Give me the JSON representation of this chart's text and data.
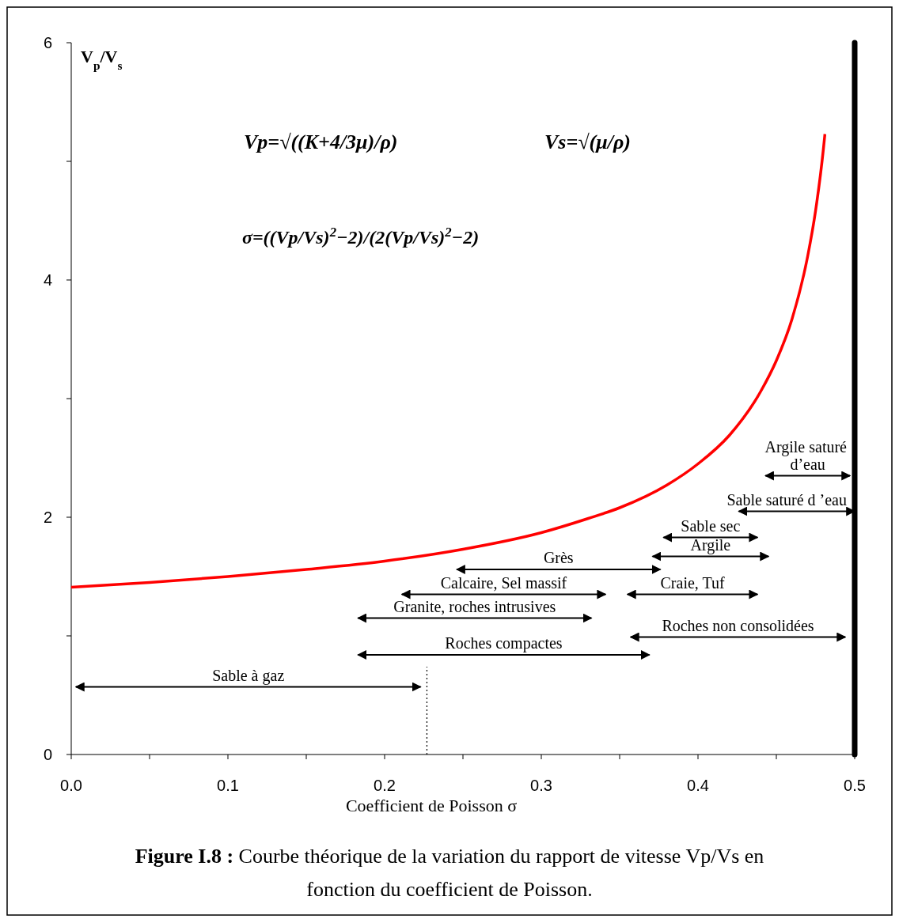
{
  "chart_data": {
    "type": "line",
    "title": "Figure I.8 :",
    "subtitle": "Courbe théorique de la variation du rapport de vitesse Vp/Vs en fonction du coefficient de Poisson.",
    "xlabel": "Coefficient de Poisson σ",
    "ylabel": "V$_{p}$/V$_{s}$",
    "xlim": [
      0,
      0.5
    ],
    "ylim": [
      0,
      6
    ],
    "xticks": [
      {
        "value": 0,
        "label": "0.0"
      },
      {
        "value": 0.05,
        "label": null
      },
      {
        "value": 0.1,
        "label": "0.1"
      },
      {
        "value": 0.15,
        "label": null
      },
      {
        "value": 0.2,
        "label": "0.2"
      },
      {
        "value": 0.25,
        "label": null
      },
      {
        "value": 0.3,
        "label": "0.3"
      },
      {
        "value": 0.35,
        "label": null
      },
      {
        "value": 0.4,
        "label": "0.4"
      },
      {
        "value": 0.45,
        "label": null
      },
      {
        "value": 0.5,
        "label": "0.5"
      }
    ],
    "yticks": [
      0,
      {
        "value": 1,
        "label": null
      },
      2,
      {
        "value": 3,
        "label": null
      },
      4,
      {
        "value": 5,
        "label": null
      },
      6
    ],
    "grid": false,
    "marker": "none",
    "series": [
      {
        "color": "#ff0000",
        "x": [
          0,
          0.05,
          0.1,
          0.15,
          0.2,
          0.25,
          0.3,
          0.33,
          0.35,
          0.38,
          0.4,
          0.42,
          0.44,
          0.45,
          0.46,
          0.47,
          0.475,
          0.48,
          0.481
        ],
        "values": [
          1.41,
          1.45,
          1.5,
          1.56,
          1.63,
          1.73,
          1.87,
          1.99,
          2.08,
          2.27,
          2.45,
          2.69,
          3.06,
          3.32,
          3.67,
          4.2,
          4.58,
          5.1,
          5.23
        ]
      },
      {
        "name": "Sable à gaz",
        "color": "#000000",
        "x": [
          0.003,
          0.223
        ],
        "values": [
          0.57,
          0.57
        ]
      },
      {
        "name": "Roches compactes",
        "color": "#000000",
        "x": [
          0.183,
          0.369
        ],
        "values": [
          0.84,
          0.84
        ]
      },
      {
        "name": "Granite, roches intrusives",
        "color": "#000000",
        "x": [
          0.183,
          0.332
        ],
        "values": [
          1.15,
          1.15
        ]
      },
      {
        "name": "Calcaire, Sel massif",
        "color": "#000000",
        "x": [
          0.211,
          0.341
        ],
        "values": [
          1.35,
          1.35
        ]
      },
      {
        "name": "Grès",
        "color": "#000000",
        "x": [
          0.246,
          0.376
        ],
        "values": [
          1.56,
          1.56
        ]
      },
      {
        "name": "Roches non consolidées",
        "color": "#000000",
        "x": [
          0.357,
          0.494
        ],
        "values": [
          0.99,
          0.99
        ]
      },
      {
        "name": "Craie, Tuf",
        "color": "#000000",
        "x": [
          0.355,
          0.438
        ],
        "values": [
          1.35,
          1.35
        ]
      },
      {
        "name": "Argile",
        "color": "#000000",
        "x": [
          0.371,
          0.445
        ],
        "values": [
          1.67,
          1.67
        ]
      },
      {
        "name": "Sable sec",
        "color": "#000000",
        "x": [
          0.378,
          0.438
        ],
        "values": [
          1.83,
          1.83
        ]
      },
      {
        "name": "Sable saturé d ’eau",
        "color": "#000000",
        "x": [
          0.426,
          0.5
        ],
        "values": [
          2.05,
          2.05
        ]
      },
      {
        "name": "Argile saturé d’eau",
        "color": "#000000",
        "x": [
          0.443,
          0.497
        ],
        "values": [
          2.35,
          2.35
        ]
      },
      {
        "color": "#000000",
        "line_style": "dotted",
        "x": [
          0.227,
          0.227
        ],
        "values": [
          0,
          0.74
        ]
      }
    ],
    "ref_lines": [
      {
        "axis": "x",
        "value": 0.5,
        "color": "#000000"
      }
    ],
    "annotations": [
      "Vp=√((K+4/3μ)/ρ)",
      "Vs=√(μ/ρ)",
      "σ=((Vp/Vs)$^{2}$−2)/(2(Vp/Vs)$^{2}$−2)"
    ]
  }
}
